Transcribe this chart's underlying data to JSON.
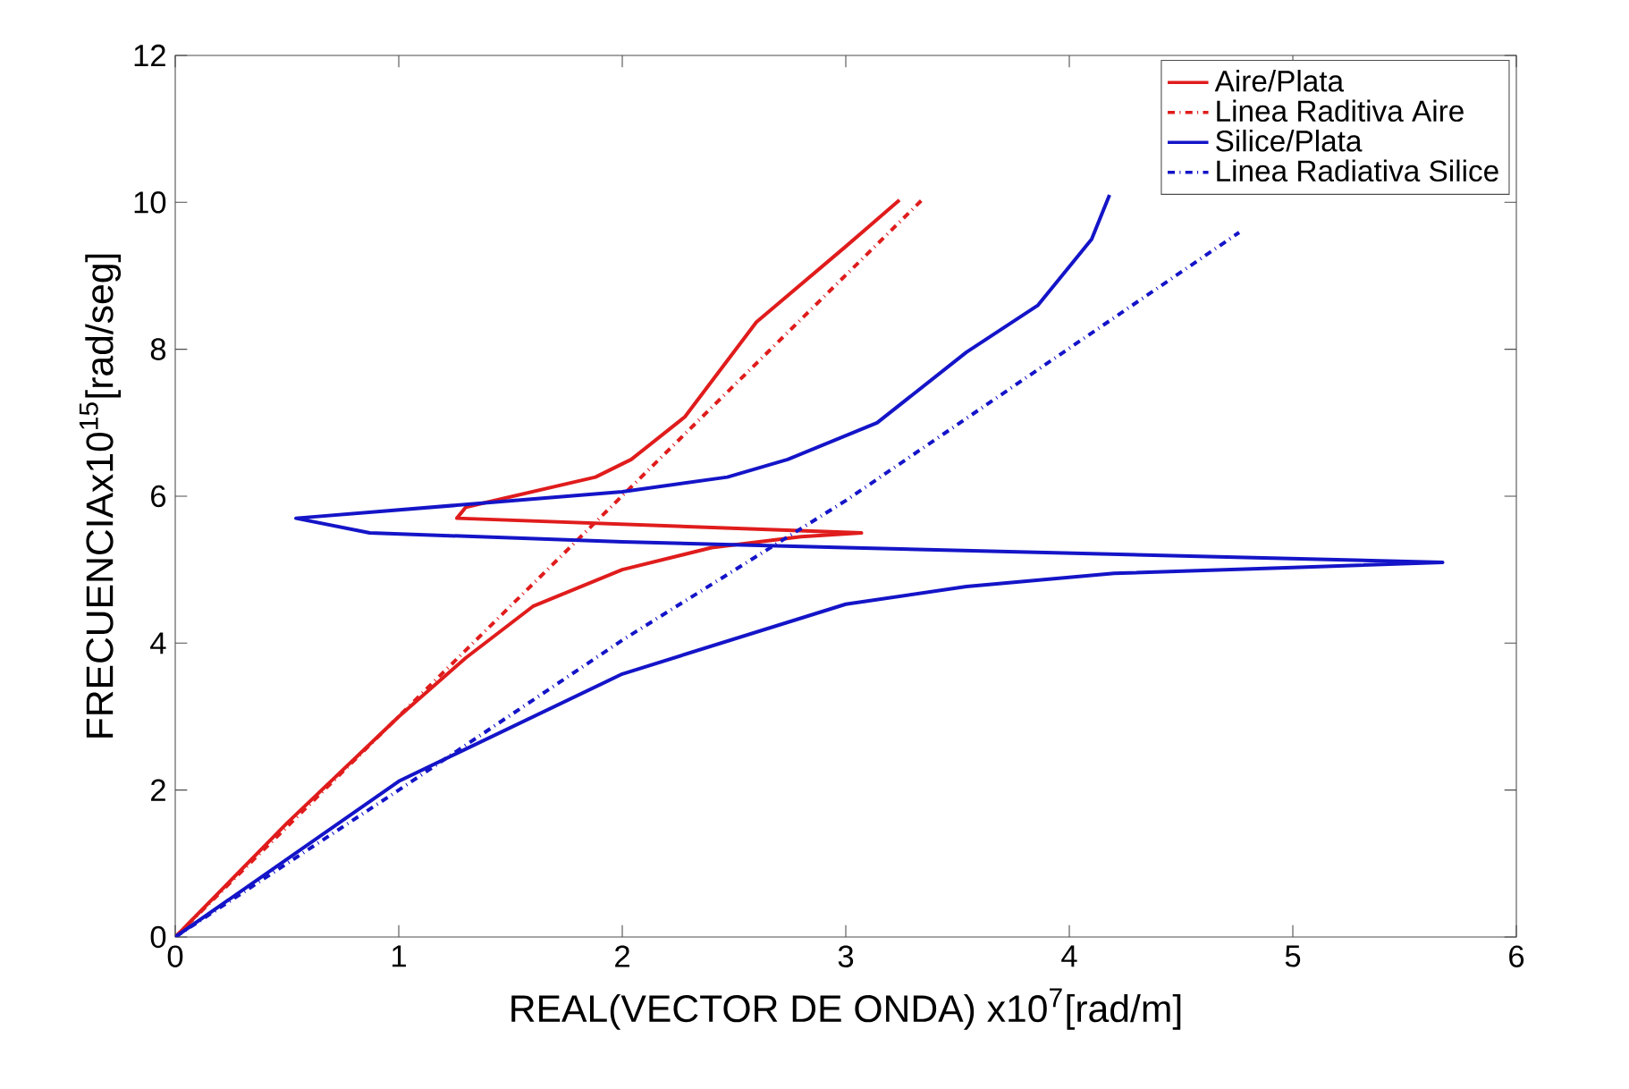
{
  "chart_data": {
    "type": "line",
    "xlabel": "REAL(VECTOR DE ONDA) x10$^{7}$[rad/m]",
    "ylabel": "FRECUENCIAx10$^{15}$[rad/seg]",
    "xlim": [
      0,
      6
    ],
    "ylim": [
      0,
      12
    ],
    "xticks": [
      0,
      1,
      2,
      3,
      4,
      5,
      6
    ],
    "yticks": [
      0,
      2,
      4,
      6,
      8,
      10,
      12
    ],
    "grid": false,
    "legend": "top right",
    "marker": "none",
    "series": [
      {
        "name": "Aire/Plata",
        "color": "#e01c1c",
        "line_style": "solid",
        "x": [
          0,
          0.5,
          1,
          1.3,
          1.6,
          2,
          2.4,
          2.8,
          3.07,
          1.26,
          1.3,
          1.88,
          2.04,
          2.28,
          2.6,
          3.0,
          3.24
        ],
        "values": [
          0,
          1.55,
          3.0,
          3.8,
          4.5,
          5.0,
          5.3,
          5.45,
          5.5,
          5.7,
          5.85,
          6.26,
          6.5,
          7.08,
          8.37,
          9.4,
          10.03
        ]
      },
      {
        "name": "Linea Raditiva Aire",
        "color": "#e01c1c",
        "line_style": "dashdot",
        "x": [
          0,
          3.34
        ],
        "values": [
          0,
          10.03
        ]
      },
      {
        "name": "Silice/Plata",
        "color": "#1414c8",
        "line_style": "solid",
        "x": [
          0,
          1,
          2,
          3,
          3.54,
          4.2,
          5.0,
          5.67,
          3.0,
          2.0,
          0.87,
          0.54,
          2.0,
          2.47,
          2.74,
          3.14,
          3.54,
          3.86,
          4.1,
          4.18
        ],
        "values": [
          0,
          2.12,
          3.58,
          4.53,
          4.77,
          4.95,
          5.03,
          5.1,
          5.3,
          5.38,
          5.5,
          5.7,
          6.06,
          6.26,
          6.5,
          7.0,
          7.96,
          8.6,
          9.5,
          10.1
        ]
      },
      {
        "name": "Linea Radiativa Silice",
        "color": "#1414c8",
        "line_style": "dashdot",
        "x": [
          0,
          1,
          2,
          3,
          4.76
        ],
        "values": [
          0,
          2.0,
          4.04,
          5.94,
          9.59
        ]
      }
    ]
  }
}
